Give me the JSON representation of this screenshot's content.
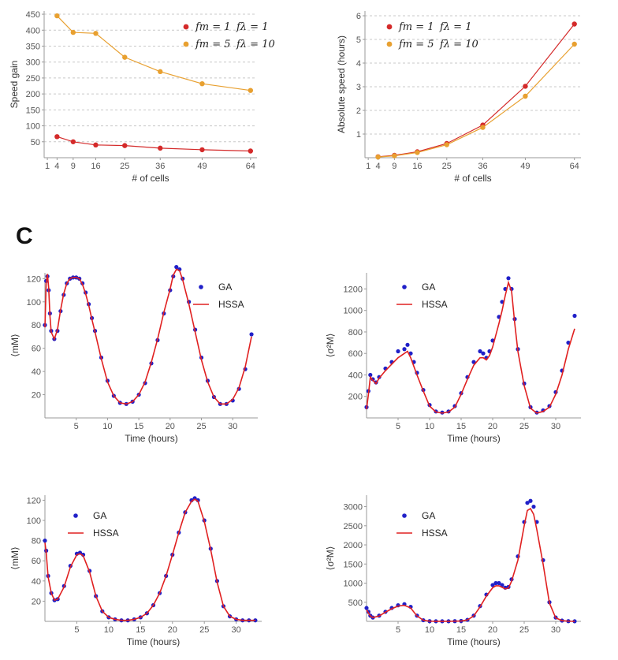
{
  "panel_label": "C",
  "chart_data": [
    {
      "id": "speed-gain",
      "type": "line",
      "title": "",
      "xlabel": "# of cells",
      "ylabel": "Speed gain",
      "xticks": [
        1,
        4,
        9,
        16,
        25,
        36,
        49,
        64
      ],
      "yticks": [
        50,
        100,
        150,
        200,
        250,
        300,
        350,
        400,
        450
      ],
      "xlim": [
        0,
        66
      ],
      "ylim": [
        0,
        460
      ],
      "grid": "horizontal-dashed",
      "legend_position": "top-right",
      "x": [
        4,
        9,
        16,
        25,
        36,
        49,
        64
      ],
      "series": [
        {
          "name": "f_m = 1  f_λ = 1",
          "label_a": "fm = 1",
          "label_b": "fλ = 1",
          "color": "#d42a2a",
          "values": [
            66,
            50,
            40,
            38,
            30,
            25,
            21
          ]
        },
        {
          "name": "f_m = 5  f_λ = 10",
          "label_a": "fm = 5",
          "label_b": "fλ = 10",
          "color": "#e8a030",
          "values": [
            445,
            393,
            390,
            315,
            270,
            232,
            211
          ]
        }
      ]
    },
    {
      "id": "absolute-speed",
      "type": "line",
      "title": "",
      "xlabel": "# of cells",
      "ylabel": "Absolute speed (hours)",
      "xticks": [
        1,
        4,
        9,
        16,
        25,
        36,
        49,
        64
      ],
      "yticks": [
        1,
        2,
        3,
        4,
        5,
        6
      ],
      "xlim": [
        0,
        66
      ],
      "ylim": [
        0,
        6.2
      ],
      "grid": "horizontal-dashed",
      "legend_position": "top-left",
      "x": [
        4,
        9,
        16,
        25,
        36,
        49,
        64
      ],
      "series": [
        {
          "name": "f_m = 1  f_λ = 1",
          "label_a": "fm = 1",
          "label_b": "fλ = 1",
          "color": "#d42a2a",
          "values": [
            0.04,
            0.1,
            0.25,
            0.6,
            1.38,
            3.02,
            5.65
          ]
        },
        {
          "name": "f_m = 5  f_λ = 10",
          "label_a": "fm = 5",
          "label_b": "fλ = 10",
          "color": "#e8a030",
          "values": [
            0.03,
            0.08,
            0.22,
            0.55,
            1.28,
            2.6,
            4.8
          ]
        }
      ]
    },
    {
      "id": "mean-m-1",
      "type": "line",
      "xlabel": "Time  (hours)",
      "ylabel": "⟨m_M⟩",
      "ylabel_text": "⟨mM⟩",
      "xticks": [
        5,
        10,
        15,
        20,
        25,
        30
      ],
      "yticks": [
        20,
        40,
        60,
        80,
        100,
        120
      ],
      "xlim": [
        0,
        34
      ],
      "ylim": [
        0,
        125
      ],
      "legend_position": "top-right",
      "x": [
        0,
        0.2,
        0.4,
        0.6,
        0.8,
        1,
        1.5,
        2,
        2.5,
        3,
        3.5,
        4,
        4.5,
        5,
        5.5,
        6,
        6.5,
        7,
        7.5,
        8,
        9,
        10,
        11,
        12,
        13,
        14,
        15,
        16,
        17,
        18,
        19,
        20,
        20.5,
        21,
        21.5,
        22,
        23,
        24,
        25,
        26,
        27,
        28,
        29,
        30,
        31,
        32,
        33
      ],
      "series": [
        {
          "name": "GA",
          "color": "#2020c8",
          "style": "dots",
          "values": [
            80,
            118,
            122,
            110,
            90,
            75,
            68,
            75,
            92,
            106,
            116,
            120,
            121,
            121,
            120,
            116,
            108,
            98,
            86,
            75,
            52,
            32,
            19,
            13,
            12,
            14,
            20,
            30,
            47,
            67,
            90,
            110,
            122,
            130,
            128,
            120,
            100,
            76,
            52,
            32,
            18,
            12,
            12,
            15,
            25,
            42,
            72
          ]
        },
        {
          "name": "HSSA",
          "color": "#e02020",
          "style": "line",
          "values": [
            78,
            116,
            124,
            112,
            88,
            74,
            68,
            76,
            93,
            107,
            116,
            120,
            121,
            121,
            120,
            115,
            107,
            97,
            85,
            74,
            51,
            31,
            19,
            13,
            12,
            14,
            20,
            31,
            48,
            68,
            91,
            111,
            123,
            128,
            127,
            119,
            98,
            74,
            50,
            31,
            18,
            12,
            12,
            16,
            26,
            44,
            70
          ]
        }
      ]
    },
    {
      "id": "variance-1",
      "type": "line",
      "xlabel": "Time  (hours)",
      "ylabel": "⟨σ²_M⟩",
      "ylabel_text": "⟨σ²M⟩",
      "xticks": [
        5,
        10,
        15,
        20,
        25,
        30
      ],
      "yticks": [
        200,
        400,
        600,
        800,
        1000,
        1200
      ],
      "xlim": [
        0,
        34
      ],
      "ylim": [
        0,
        1350
      ],
      "legend_position": "top-right",
      "x": [
        0,
        0.3,
        0.6,
        1,
        1.5,
        2,
        3,
        4,
        5,
        6,
        6.5,
        7,
        7.5,
        8,
        9,
        10,
        11,
        12,
        13,
        14,
        15,
        16,
        17,
        18,
        18.5,
        19,
        19.5,
        20,
        21,
        21.5,
        22,
        22.5,
        23,
        23.5,
        24,
        25,
        26,
        27,
        28,
        29,
        30,
        31,
        32,
        33
      ],
      "series": [
        {
          "name": "GA",
          "color": "#2020c8",
          "style": "dots",
          "values": [
            100,
            250,
            400,
            360,
            330,
            380,
            460,
            520,
            620,
            640,
            680,
            600,
            520,
            420,
            260,
            120,
            60,
            50,
            60,
            110,
            230,
            380,
            520,
            620,
            600,
            560,
            620,
            720,
            940,
            1080,
            1200,
            1300,
            1200,
            920,
            640,
            320,
            100,
            50,
            70,
            110,
            240,
            440,
            700,
            950
          ]
        },
        {
          "name": "HSSA",
          "color": "#e02020",
          "style": "line",
          "values": [
            80,
            220,
            380,
            350,
            320,
            370,
            440,
            500,
            560,
            600,
            620,
            560,
            480,
            400,
            250,
            110,
            55,
            45,
            55,
            100,
            220,
            360,
            490,
            560,
            560,
            540,
            580,
            660,
            880,
            1000,
            1140,
            1260,
            1180,
            880,
            620,
            300,
            90,
            45,
            60,
            100,
            220,
            400,
            640,
            830
          ]
        }
      ]
    },
    {
      "id": "mean-m-2",
      "type": "line",
      "xlabel": "Time  (hours)",
      "ylabel": "⟨m_M⟩",
      "ylabel_text": "⟨mM⟩",
      "xticks": [
        5,
        10,
        15,
        20,
        25,
        30
      ],
      "yticks": [
        20,
        40,
        60,
        80,
        100,
        120
      ],
      "xlim": [
        0,
        34
      ],
      "ylim": [
        0,
        125
      ],
      "legend_position": "top-left",
      "x": [
        0,
        0.2,
        0.5,
        1,
        1.5,
        2,
        3,
        4,
        5,
        5.5,
        6,
        7,
        8,
        9,
        10,
        11,
        12,
        13,
        14,
        15,
        16,
        17,
        18,
        19,
        20,
        21,
        22,
        23,
        23.5,
        24,
        25,
        26,
        27,
        28,
        29,
        30,
        31,
        32,
        33
      ],
      "series": [
        {
          "name": "GA",
          "color": "#2020c8",
          "style": "dots",
          "values": [
            80,
            70,
            45,
            28,
            21,
            22,
            35,
            55,
            67,
            68,
            66,
            50,
            25,
            10,
            4,
            2,
            1,
            1,
            2,
            4,
            8,
            16,
            28,
            45,
            66,
            88,
            108,
            120,
            122,
            120,
            100,
            72,
            40,
            15,
            5,
            2,
            1,
            1,
            1
          ]
        },
        {
          "name": "HSSA",
          "color": "#e02020",
          "style": "line",
          "values": [
            78,
            68,
            44,
            28,
            21,
            22,
            34,
            54,
            66,
            67,
            65,
            49,
            25,
            10,
            4,
            2,
            1,
            1,
            2,
            4,
            8,
            16,
            28,
            45,
            66,
            88,
            108,
            119,
            121,
            119,
            99,
            71,
            39,
            15,
            5,
            2,
            1,
            1,
            1
          ]
        }
      ]
    },
    {
      "id": "variance-2",
      "type": "line",
      "xlabel": "Time  (hours)",
      "ylabel": "⟨σ²_M⟩",
      "ylabel_text": "⟨σ²M⟩",
      "xticks": [
        5,
        10,
        15,
        20,
        25,
        30
      ],
      "yticks": [
        500,
        1000,
        1500,
        2000,
        2500,
        3000
      ],
      "xlim": [
        0,
        34
      ],
      "ylim": [
        0,
        3300
      ],
      "legend_position": "top-left",
      "x": [
        0,
        0.3,
        0.6,
        1,
        2,
        3,
        4,
        5,
        6,
        7,
        8,
        9,
        10,
        11,
        12,
        13,
        14,
        15,
        16,
        17,
        18,
        19,
        20,
        20.5,
        21,
        21.5,
        22,
        22.5,
        23,
        24,
        25,
        25.5,
        26,
        26.5,
        27,
        28,
        29,
        30,
        31,
        32,
        33
      ],
      "series": [
        {
          "name": "GA",
          "color": "#2020c8",
          "style": "dots",
          "values": [
            350,
            250,
            150,
            100,
            150,
            250,
            350,
            420,
            450,
            380,
            150,
            30,
            5,
            2,
            2,
            2,
            5,
            10,
            40,
            150,
            400,
            700,
            950,
            1000,
            1000,
            950,
            880,
            900,
            1100,
            1700,
            2600,
            3100,
            3150,
            3000,
            2600,
            1600,
            500,
            100,
            20,
            5,
            2
          ]
        },
        {
          "name": "HSSA",
          "color": "#e02020",
          "style": "line",
          "values": [
            300,
            220,
            140,
            100,
            140,
            240,
            330,
            400,
            420,
            350,
            140,
            30,
            5,
            2,
            2,
            2,
            5,
            10,
            38,
            140,
            380,
            660,
            880,
            930,
            930,
            890,
            850,
            870,
            1050,
            1600,
            2500,
            2900,
            2950,
            2800,
            2400,
            1500,
            480,
            90,
            20,
            5,
            2
          ]
        }
      ]
    }
  ]
}
